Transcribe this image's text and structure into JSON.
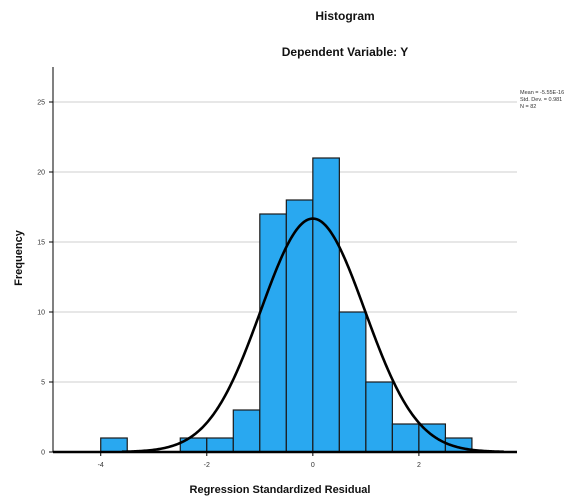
{
  "chart_data": {
    "type": "bar",
    "title": "Histogram",
    "subtitle": "Dependent Variable: Y",
    "xlabel": "Regression Standardized Residual",
    "ylabel": "Frequency",
    "xlim": [
      -4.9,
      3.85
    ],
    "ylim": [
      0,
      27.5
    ],
    "x_ticks": [
      -4,
      -2,
      0,
      2
    ],
    "x_tick_labels": [
      "-4",
      "-2",
      "0",
      "2"
    ],
    "y_ticks": [
      0,
      5,
      10,
      15,
      20,
      25
    ],
    "y_tick_labels": [
      "0",
      "5",
      "10",
      "15",
      "20",
      "25"
    ],
    "bin_width": 0.5,
    "bins": [
      {
        "start": -4.0,
        "value": 1
      },
      {
        "start": -2.5,
        "value": 1
      },
      {
        "start": -2.0,
        "value": 1
      },
      {
        "start": -1.5,
        "value": 3
      },
      {
        "start": -1.0,
        "value": 17
      },
      {
        "start": -0.5,
        "value": 18
      },
      {
        "start": 0.0,
        "value": 21
      },
      {
        "start": 0.5,
        "value": 10
      },
      {
        "start": 1.0,
        "value": 5
      },
      {
        "start": 1.5,
        "value": 2
      },
      {
        "start": 2.0,
        "value": 2
      },
      {
        "start": 2.5,
        "value": 1
      }
    ],
    "normal_curve": {
      "mean": 0,
      "sd": 0.981,
      "n": 82
    },
    "stats": {
      "mean": "Mean = -5.55E-16",
      "std_dev": "Std. Dev. = 0.981",
      "n": "N = 82"
    },
    "grid": "horizontal",
    "colors": {
      "bar_fill": "#29a8f0",
      "bar_stroke": "#1a1a1a",
      "curve": "#000000",
      "grid": "#cfcfcf",
      "axis": "#000000"
    }
  }
}
